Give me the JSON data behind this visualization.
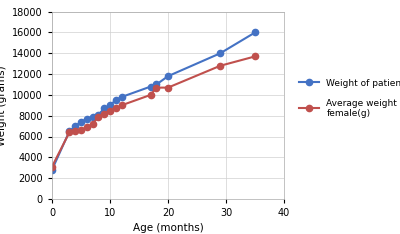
{
  "patient_age": [
    0,
    3,
    4,
    5,
    6,
    7,
    8,
    9,
    10,
    11,
    12,
    17,
    18,
    20,
    29,
    35
  ],
  "patient_weight": [
    2800,
    6500,
    7000,
    7400,
    7700,
    7900,
    8100,
    8700,
    9000,
    9500,
    9800,
    10800,
    11000,
    11800,
    14000,
    16000
  ],
  "female_age": [
    0,
    3,
    4,
    5,
    6,
    7,
    8,
    9,
    10,
    11,
    12,
    17,
    18,
    20,
    29,
    35
  ],
  "female_weight": [
    3100,
    6400,
    6500,
    6600,
    6900,
    7200,
    7900,
    8200,
    8500,
    8700,
    9000,
    10000,
    10700,
    10700,
    12800,
    13700
  ],
  "patient_color": "#4472C4",
  "female_color": "#C0504D",
  "patient_label": "Weight of patient(g)",
  "female_label": "Average weight of\nfemale(g)",
  "xlabel": "Age (months)",
  "ylabel": "Weight (grams)",
  "xlim": [
    0,
    40
  ],
  "ylim": [
    0,
    18000
  ],
  "xticks": [
    0,
    10,
    20,
    30,
    40
  ],
  "yticks": [
    0,
    2000,
    4000,
    6000,
    8000,
    10000,
    12000,
    14000,
    16000,
    18000
  ],
  "bg_color": "#ffffff",
  "grid_color": "#d0d0d0",
  "marker": "o",
  "linewidth": 1.5,
  "markersize": 4.5
}
